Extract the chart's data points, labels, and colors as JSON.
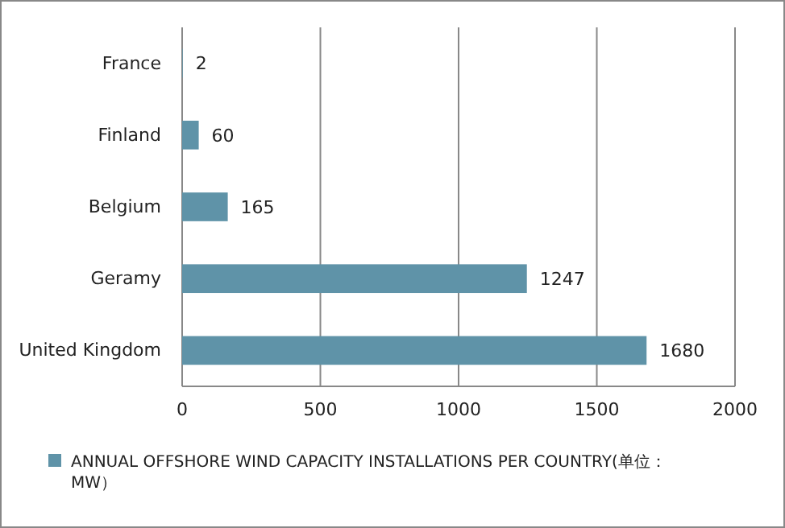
{
  "chart_data": {
    "type": "bar",
    "orientation": "horizontal",
    "categories": [
      "France",
      "Finland",
      "Belgium",
      "Geramy",
      "United Kingdom"
    ],
    "series": [
      {
        "name": "ANNUAL OFFSHORE WIND CAPACITY INSTALLATIONS  PER COUNTRY(单位：MW）",
        "color": "#5f93a8",
        "values": [
          2,
          60,
          165,
          1247,
          1680
        ]
      }
    ],
    "xlim": [
      0,
      2000
    ],
    "xticks": [
      0,
      500,
      1000,
      1500,
      2000
    ],
    "grid": "x",
    "data_labels": true,
    "legend": "bottom"
  }
}
